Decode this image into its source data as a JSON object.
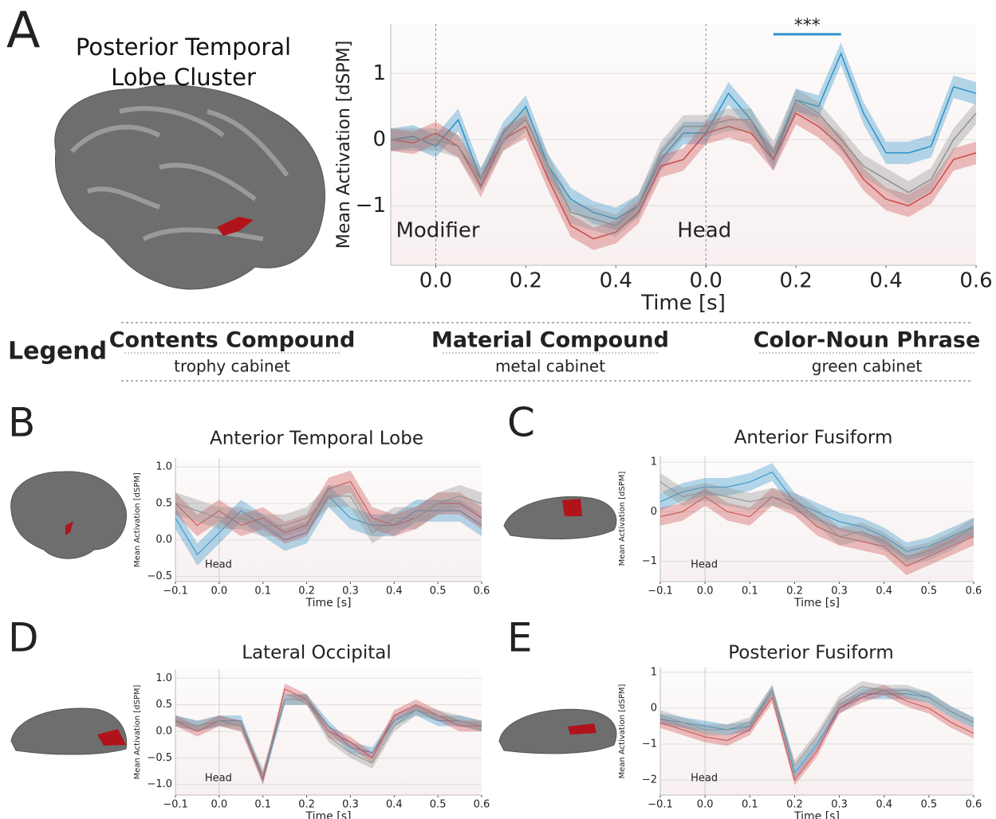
{
  "chart_data": [
    {
      "type": "line",
      "panel": "A",
      "title": "Posterior Temporal Lobe Cluster",
      "xlabel": "Time [s]",
      "ylabel": "Mean Activation [dSPM]",
      "legend_title": "Legend",
      "x": [
        -0.1,
        -0.05,
        0,
        0.05,
        0.1,
        0.15,
        0.2,
        0.25,
        0.3,
        0.35,
        0.4,
        0.45,
        0.5,
        0.55,
        0.6,
        0.65,
        0.7,
        0.75,
        0.8,
        0.85,
        0.9,
        0.95,
        1.0,
        1.05,
        1.1,
        1.15,
        1.2
      ],
      "series": [
        {
          "name": "Contents Compound",
          "example": "trophy cabinet",
          "color": "#2a93c8",
          "error": 0.17,
          "values": [
            0,
            0.05,
            -0.1,
            0.3,
            -0.6,
            0.1,
            0.5,
            -0.4,
            -0.9,
            -1.1,
            -1.2,
            -1.0,
            -0.3,
            0.1,
            0.1,
            0.7,
            0.3,
            -0.3,
            0.6,
            0.5,
            1.3,
            0.4,
            -0.2,
            -0.2,
            -0.1,
            0.8,
            0.7
          ]
        },
        {
          "name": "Material Compound",
          "example": "metal cabinet",
          "color": "#cc4a4a",
          "error": 0.17,
          "values": [
            0,
            -0.05,
            0.1,
            -0.1,
            -0.7,
            0,
            0.2,
            -0.6,
            -1.3,
            -1.5,
            -1.4,
            -1.1,
            -0.4,
            -0.3,
            0.1,
            0.2,
            0.1,
            -0.3,
            0.4,
            0.2,
            -0.1,
            -0.6,
            -0.9,
            -1.0,
            -0.8,
            -0.3,
            -0.2
          ]
        },
        {
          "name": "Color-Noun Phrase",
          "example": "green cabinet",
          "color": "#8f8f8f",
          "error": 0.17,
          "values": [
            0,
            0,
            0,
            -0.1,
            -0.6,
            0,
            0.3,
            -0.4,
            -1.1,
            -1.2,
            -1.3,
            -1.0,
            -0.2,
            0.2,
            0.2,
            0.3,
            0.3,
            -0.2,
            0.6,
            0.4,
            0,
            -0.4,
            -0.6,
            -0.8,
            -0.6,
            0,
            0.4
          ]
        }
      ],
      "xlim": [
        -0.1,
        1.2
      ],
      "ylim": [
        -1.9,
        1.75
      ],
      "xticks": [
        {
          "value": 0,
          "label": "0.0"
        },
        0.2,
        0.4,
        {
          "value": 0.6,
          "label": "0.0"
        },
        {
          "value": 0.8,
          "label": "0.2"
        },
        {
          "value": 1.0,
          "label": "0.4"
        },
        {
          "value": 1.2,
          "label": "0.6"
        }
      ],
      "yticks": [
        1,
        0,
        {
          "value": -1,
          "label": "−1"
        }
      ],
      "events": [
        {
          "x": 0,
          "label": "Modifier"
        },
        {
          "x": 0.6,
          "label": "Head"
        }
      ],
      "significance": {
        "label": "***",
        "x": [
          0.75,
          0.9
        ]
      }
    },
    {
      "type": "line",
      "panel": "B",
      "title": "Anterior Temporal Lobe",
      "xlabel": "Time [s]",
      "ylabel": "Mean Activation [dSPM]",
      "x": [
        -0.1,
        -0.05,
        0,
        0.05,
        0.1,
        0.15,
        0.2,
        0.25,
        0.3,
        0.35,
        0.4,
        0.45,
        0.5,
        0.55,
        0.6
      ],
      "series": [
        {
          "color": "#2a93c8",
          "error": 0.15,
          "values": [
            0.3,
            -0.2,
            0.1,
            0.4,
            0.2,
            0,
            0.1,
            0.6,
            0.3,
            0.2,
            0.2,
            0.4,
            0.4,
            0.4,
            0.2
          ]
        },
        {
          "color": "#cc4a4a",
          "error": 0.15,
          "values": [
            0.5,
            0.2,
            0.4,
            0.2,
            0.3,
            0.1,
            0.2,
            0.7,
            0.8,
            0.3,
            0.2,
            0.3,
            0.5,
            0.5,
            0.3
          ]
        },
        {
          "color": "#8f8f8f",
          "error": 0.15,
          "values": [
            0.5,
            0.4,
            0.3,
            0.3,
            0.2,
            0.2,
            0.3,
            0.6,
            0.6,
            0.1,
            0.3,
            0.3,
            0.5,
            0.6,
            0.5
          ]
        }
      ],
      "xlim": [
        -0.1,
        0.6
      ],
      "ylim": [
        -0.57,
        1.12
      ],
      "xticks": [
        {
          "value": -0.1,
          "label": "−0.1"
        },
        {
          "value": 0,
          "label": "0.0"
        },
        0.1,
        0.2,
        0.3,
        0.4,
        0.5,
        0.6
      ],
      "yticks": [
        {
          "value": 1,
          "label": "1.0"
        },
        0.5,
        {
          "value": 0,
          "label": "0.0"
        },
        {
          "value": -0.5,
          "label": "−0.5"
        }
      ],
      "events": [
        {
          "x": 0,
          "label": "Head"
        }
      ]
    },
    {
      "type": "line",
      "panel": "C",
      "title": "Anterior Fusiform",
      "xlabel": "Time [s]",
      "ylabel": "Mean Activation [dSPM]",
      "x": [
        -0.1,
        -0.05,
        0,
        0.05,
        0.1,
        0.15,
        0.2,
        0.25,
        0.3,
        0.35,
        0.4,
        0.45,
        0.5,
        0.55,
        0.6
      ],
      "series": [
        {
          "color": "#2a93c8",
          "error": 0.18,
          "values": [
            0.2,
            0.4,
            0.5,
            0.5,
            0.6,
            0.8,
            0.2,
            0,
            -0.2,
            -0.3,
            -0.5,
            -0.8,
            -0.7,
            -0.5,
            -0.3
          ]
        },
        {
          "color": "#cc4a4a",
          "error": 0.18,
          "values": [
            -0.1,
            0,
            0.3,
            0,
            -0.1,
            0.3,
            0.1,
            -0.3,
            -0.5,
            -0.6,
            -0.7,
            -1.1,
            -0.9,
            -0.7,
            -0.5
          ]
        },
        {
          "color": "#8f8f8f",
          "error": 0.18,
          "values": [
            0.6,
            0.3,
            0.4,
            0.3,
            0.2,
            0.3,
            0.2,
            -0.1,
            -0.5,
            -0.4,
            -0.6,
            -0.9,
            -0.8,
            -0.6,
            -0.3
          ]
        }
      ],
      "xlim": [
        -0.1,
        0.6
      ],
      "ylim": [
        -1.41,
        1.13
      ],
      "xticks": [
        {
          "value": -0.1,
          "label": "−0.1"
        },
        {
          "value": 0,
          "label": "0.0"
        },
        0.1,
        0.2,
        0.3,
        0.4,
        0.5,
        0.6
      ],
      "yticks": [
        1,
        0,
        {
          "value": -1,
          "label": "−1"
        }
      ],
      "events": [
        {
          "x": 0,
          "label": "Head"
        }
      ]
    },
    {
      "type": "line",
      "panel": "D",
      "title": "Lateral Occipital",
      "xlabel": "Time [s]",
      "ylabel": "Mean Activation [dSPM]",
      "x": [
        -0.1,
        -0.05,
        0,
        0.05,
        0.1,
        0.15,
        0.2,
        0.25,
        0.3,
        0.35,
        0.4,
        0.45,
        0.5,
        0.55,
        0.6
      ],
      "series": [
        {
          "color": "#2a93c8",
          "error": 0.1,
          "values": [
            0.2,
            0.1,
            0.2,
            0.2,
            -0.9,
            0.6,
            0.6,
            0.1,
            -0.3,
            -0.4,
            0.2,
            0.4,
            0.2,
            0.2,
            0.1
          ]
        },
        {
          "color": "#cc4a4a",
          "error": 0.1,
          "values": [
            0.2,
            0,
            0.2,
            0.1,
            -0.9,
            0.8,
            0.6,
            0,
            -0.2,
            -0.5,
            0.3,
            0.5,
            0.3,
            0.1,
            0.1
          ]
        },
        {
          "color": "#8f8f8f",
          "error": 0.1,
          "values": [
            0.2,
            0.1,
            0.2,
            0.1,
            -0.8,
            0.6,
            0.6,
            -0.1,
            -0.4,
            -0.6,
            0.1,
            0.4,
            0.3,
            0.2,
            0.1
          ]
        }
      ],
      "xlim": [
        -0.1,
        0.6
      ],
      "ylim": [
        -1.2,
        1.17
      ],
      "xticks": [
        {
          "value": -0.1,
          "label": "−0.1"
        },
        {
          "value": 0,
          "label": "0.0"
        },
        0.1,
        0.2,
        0.3,
        0.4,
        0.5,
        0.6
      ],
      "yticks": [
        {
          "value": 1,
          "label": "1.0"
        },
        0.5,
        {
          "value": 0,
          "label": "0.0"
        },
        {
          "value": -0.5,
          "label": "−0.5"
        },
        {
          "value": -1,
          "label": "−1.0"
        }
      ],
      "events": [
        {
          "x": 0,
          "label": "Head"
        }
      ]
    },
    {
      "type": "line",
      "panel": "E",
      "title": "Posterior Fusiform",
      "xlabel": "Time [s]",
      "ylabel": "Mean Activation [dSPM]",
      "x": [
        -0.1,
        -0.05,
        0,
        0.05,
        0.1,
        0.15,
        0.2,
        0.25,
        0.3,
        0.35,
        0.4,
        0.45,
        0.5,
        0.55,
        0.6
      ],
      "series": [
        {
          "color": "#2a93c8",
          "error": 0.15,
          "values": [
            -0.3,
            -0.4,
            -0.5,
            -0.6,
            -0.5,
            0.5,
            -1.8,
            -1.0,
            0,
            0.4,
            0.4,
            0.4,
            0.3,
            -0.1,
            -0.4
          ]
        },
        {
          "color": "#cc4a4a",
          "error": 0.15,
          "values": [
            -0.4,
            -0.6,
            -0.8,
            -0.9,
            -0.6,
            0.3,
            -2.0,
            -1.2,
            0,
            0.3,
            0.5,
            0.2,
            0,
            -0.4,
            -0.7
          ]
        },
        {
          "color": "#8f8f8f",
          "error": 0.15,
          "values": [
            -0.2,
            -0.4,
            -0.6,
            -0.6,
            -0.4,
            0.5,
            -1.6,
            -0.8,
            0.2,
            0.6,
            0.5,
            0.5,
            0.3,
            -0.1,
            -0.4
          ]
        }
      ],
      "xlim": [
        -0.1,
        0.6
      ],
      "ylim": [
        -2.42,
        1.13
      ],
      "xticks": [
        {
          "value": -0.1,
          "label": "−0.1"
        },
        {
          "value": 0,
          "label": "0.0"
        },
        0.1,
        0.2,
        0.3,
        0.4,
        0.5,
        0.6
      ],
      "yticks": [
        1,
        0,
        {
          "value": -1,
          "label": "−1"
        },
        {
          "value": -2,
          "label": "−2"
        }
      ],
      "events": [
        {
          "x": 0,
          "label": "Head"
        }
      ]
    }
  ]
}
